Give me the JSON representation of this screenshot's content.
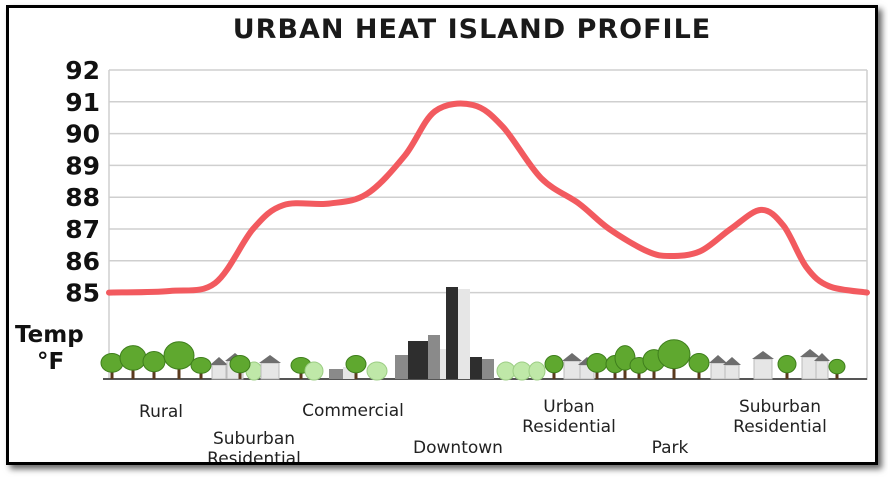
{
  "chart_data": {
    "type": "line",
    "title": "URBAN HEAT ISLAND PROFILE",
    "xlabel": "",
    "ylabel": [
      "Temp",
      "°F"
    ],
    "ylim": [
      85,
      92
    ],
    "yticks": [
      92,
      91,
      90,
      89,
      88,
      87,
      86,
      85
    ],
    "grid": true,
    "series": [
      {
        "color": "#f25a5f",
        "x": [
          0,
          0.08,
          0.14,
          0.19,
          0.23,
          0.29,
          0.34,
          0.39,
          0.43,
          0.48,
          0.52,
          0.57,
          0.62,
          0.66,
          0.71,
          0.74,
          0.78,
          0.82,
          0.86,
          0.89,
          0.92,
          0.95,
          1.0
        ],
        "values": [
          85.0,
          85.05,
          85.3,
          87.0,
          87.75,
          87.8,
          88.1,
          89.3,
          90.7,
          90.9,
          90.2,
          88.6,
          87.8,
          87.0,
          86.3,
          86.15,
          86.3,
          87.0,
          87.6,
          87.1,
          85.8,
          85.2,
          85.0
        ]
      }
    ],
    "zones": [
      {
        "lines": [
          "Rural"
        ]
      },
      {
        "lines": [
          "Suburban",
          "Residential"
        ]
      },
      {
        "lines": [
          "Commercial"
        ]
      },
      {
        "lines": [
          "Downtown"
        ]
      },
      {
        "lines": [
          "Urban",
          "Residential"
        ]
      },
      {
        "lines": [
          "Park"
        ]
      },
      {
        "lines": [
          "Suburban",
          "Residential"
        ]
      }
    ],
    "colors": {
      "curve": "#f25a5f",
      "grid": "#cfcfcf",
      "tree": "#5fa82f",
      "trunk": "#5a3a1e",
      "shrub": "#bfe8a8",
      "building_dark": "#2e2e2e",
      "building_mid": "#8a8a8a",
      "building_light": "#e6e6e6",
      "roof": "#6e6e6e"
    }
  }
}
